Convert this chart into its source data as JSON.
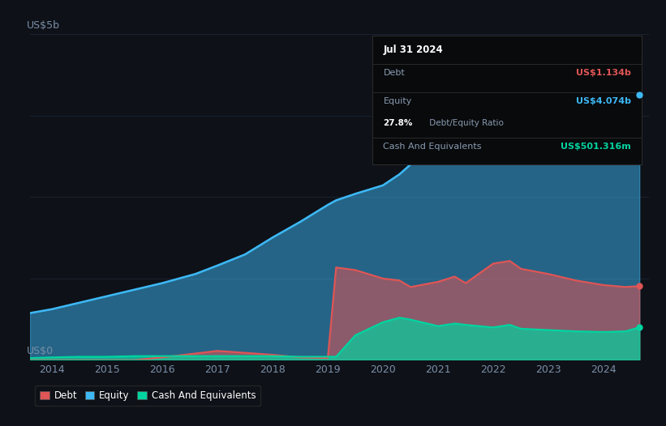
{
  "bg_color": "#0e1117",
  "plot_bg_color": "#0e1117",
  "ylabel": "US$5b",
  "y0label": "US$0",
  "debt_color": "#e05555",
  "equity_color": "#3db8f5",
  "cash_color": "#00d4a0",
  "years": [
    2013.6,
    2014.0,
    2014.5,
    2015.0,
    2015.5,
    2016.0,
    2016.3,
    2016.6,
    2017.0,
    2017.5,
    2018.0,
    2018.5,
    2019.0,
    2019.15,
    2019.5,
    2020.0,
    2020.3,
    2020.5,
    2021.0,
    2021.3,
    2021.5,
    2022.0,
    2022.3,
    2022.5,
    2023.0,
    2023.5,
    2024.0,
    2024.4,
    2024.65
  ],
  "equity": [
    0.72,
    0.78,
    0.88,
    0.98,
    1.08,
    1.18,
    1.25,
    1.32,
    1.45,
    1.62,
    1.88,
    2.12,
    2.38,
    2.45,
    2.55,
    2.68,
    2.85,
    3.0,
    3.2,
    3.35,
    3.45,
    3.65,
    3.8,
    3.9,
    4.0,
    4.1,
    4.18,
    4.25,
    4.074
  ],
  "debt": [
    0.0,
    0.0,
    0.0,
    0.0,
    0.0,
    0.04,
    0.07,
    0.1,
    0.14,
    0.11,
    0.08,
    0.04,
    0.03,
    1.42,
    1.38,
    1.25,
    1.22,
    1.12,
    1.2,
    1.28,
    1.18,
    1.48,
    1.52,
    1.4,
    1.32,
    1.22,
    1.15,
    1.12,
    1.134
  ],
  "cash": [
    0.03,
    0.04,
    0.05,
    0.05,
    0.06,
    0.06,
    0.06,
    0.06,
    0.06,
    0.06,
    0.06,
    0.05,
    0.05,
    0.05,
    0.38,
    0.58,
    0.65,
    0.62,
    0.52,
    0.56,
    0.54,
    0.5,
    0.54,
    0.48,
    0.46,
    0.44,
    0.43,
    0.44,
    0.5016
  ],
  "xmin": 2013.6,
  "xmax": 2024.83,
  "ymin": 0,
  "ymax": 5.0,
  "tooltip_box_color": "#080a0c",
  "tooltip_border_color": "#2a2a2a",
  "tooltip_title": "Jul 31 2024",
  "tooltip_debt_label": "Debt",
  "tooltip_debt_value": "US$1.134b",
  "tooltip_equity_label": "Equity",
  "tooltip_equity_value": "US$4.074b",
  "tooltip_ratio_bold": "27.8%",
  "tooltip_ratio_rest": " Debt/Equity Ratio",
  "tooltip_cash_label": "Cash And Equivalents",
  "tooltip_cash_value": "US$501.316m",
  "legend_items": [
    "Debt",
    "Equity",
    "Cash And Equivalents"
  ],
  "legend_colors": [
    "#e05555",
    "#3db8f5",
    "#00d4a0"
  ],
  "gridline_color": "#1a2233",
  "tick_color": "#7a8fa8",
  "tick_fontsize": 9,
  "axis_label_fontsize": 9
}
